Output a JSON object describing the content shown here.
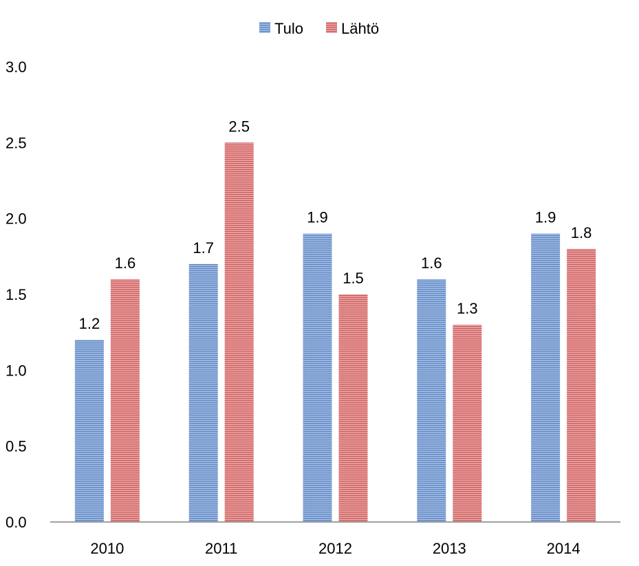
{
  "chart_data": {
    "type": "bar",
    "categories": [
      "2010",
      "2011",
      "2012",
      "2013",
      "2014"
    ],
    "series": [
      {
        "name": "Tulo",
        "values": [
          1.2,
          1.7,
          1.9,
          1.6,
          1.9
        ],
        "labels": [
          "1.2",
          "1.7",
          "1.9",
          "1.6",
          "1.9"
        ],
        "color": "#5b86c5"
      },
      {
        "name": "Lähtö",
        "values": [
          1.6,
          2.5,
          1.5,
          1.3,
          1.8
        ],
        "labels": [
          "1.6",
          "2.5",
          "1.5",
          "1.3",
          "1.8"
        ],
        "color": "#cf5b5b"
      }
    ],
    "y_ticks": [
      "0.0",
      "0.5",
      "1.0",
      "1.5",
      "2.0",
      "2.5",
      "3.0"
    ],
    "ylim": [
      0,
      3.0
    ],
    "title": "",
    "xlabel": "",
    "ylabel": "",
    "legend_position": "top-center",
    "grid": false
  }
}
